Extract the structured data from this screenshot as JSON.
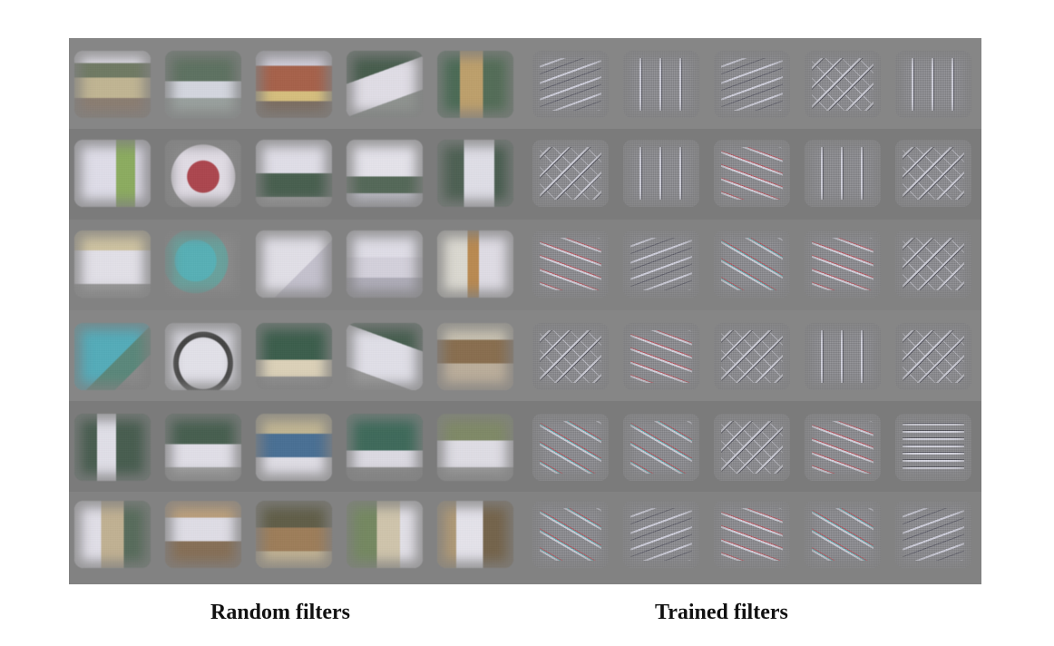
{
  "figure": {
    "panels": [
      {
        "id": "random",
        "caption": "Random filters",
        "rows": 6,
        "cols": 5
      },
      {
        "id": "trained",
        "caption": "Trained filters",
        "rows": 6,
        "cols": 5
      }
    ]
  }
}
